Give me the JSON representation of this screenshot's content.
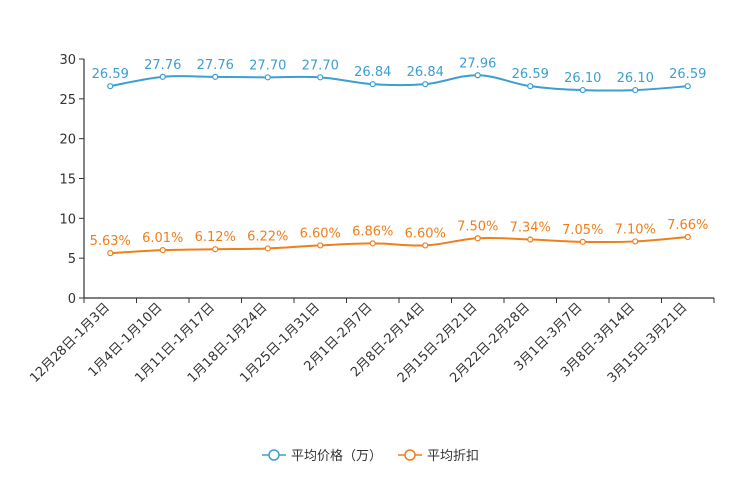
{
  "chart_data": {
    "type": "line",
    "categories": [
      "12月28日-1月3日",
      "1月4日-1月10日",
      "1月11日-1月17日",
      "1月18日-1月24日",
      "1月25日-1月31日",
      "2月1日-2月7日",
      "2月8日-2月14日",
      "2月15日-2月21日",
      "2月22日-2月28日",
      "3月1日-3月7日",
      "3月8日-3月14日",
      "3月15日-3月21日"
    ],
    "series": [
      {
        "name": "平均价格（万）",
        "values": [
          26.59,
          27.76,
          27.76,
          27.7,
          27.7,
          26.84,
          26.84,
          27.96,
          26.59,
          26.1,
          26.1,
          26.59
        ],
        "labels": [
          "26.59",
          "27.76",
          "27.76",
          "27.70",
          "27.70",
          "26.84",
          "26.84",
          "27.96",
          "26.59",
          "26.10",
          "26.10",
          "26.59"
        ],
        "color": "#3c9fd0"
      },
      {
        "name": "平均折扣",
        "values": [
          5.63,
          6.01,
          6.12,
          6.22,
          6.6,
          6.86,
          6.6,
          7.5,
          7.34,
          7.05,
          7.1,
          7.66
        ],
        "labels": [
          "5.63%",
          "6.01%",
          "6.12%",
          "6.22%",
          "6.60%",
          "6.86%",
          "6.60%",
          "7.50%",
          "7.34%",
          "7.05%",
          "7.10%",
          "7.66%"
        ],
        "color": "#f07f1a"
      }
    ],
    "y_ticks": [
      "0",
      "5",
      "10",
      "15",
      "20",
      "25",
      "30"
    ],
    "ylim": [
      0,
      30
    ],
    "xlabel": "",
    "ylabel": "",
    "title": "",
    "legend_position": "bottom-center",
    "grid": false
  }
}
